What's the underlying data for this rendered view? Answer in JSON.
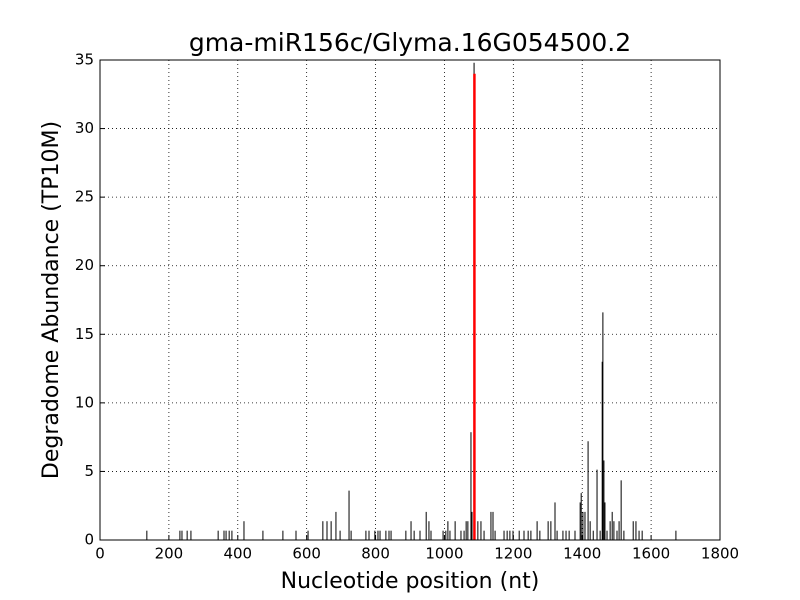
{
  "chart_data": {
    "type": "stem",
    "title": "gma-miR156c/Glyma.16G054500.2",
    "x_label": "Nucleotide position (nt)",
    "y_label": "Degradome Abundance (TP10M)",
    "xlim": [
      0,
      1800
    ],
    "xticks": [
      0,
      200,
      400,
      600,
      800,
      1000,
      1200,
      1400,
      1600,
      1800
    ],
    "ylim": [
      0,
      35
    ],
    "yticks": [
      0,
      5,
      10,
      15,
      20,
      25,
      30,
      35
    ],
    "grid": true,
    "series": [
      {
        "color": "#000000",
        "linewidth": 1,
        "x": [
          136,
          232,
          238,
          253,
          264,
          343,
          360,
          366,
          375,
          383,
          418,
          473,
          531,
          569,
          604,
          647,
          659,
          671,
          685,
          697,
          723,
          729,
          772,
          781,
          798,
          807,
          813,
          830,
          839,
          845,
          888,
          903,
          912,
          929,
          947,
          955,
          961,
          996,
          1004,
          1010,
          1016,
          1031,
          1048,
          1057,
          1063,
          1068,
          1077,
          1080,
          1086,
          1097,
          1106,
          1115,
          1135,
          1141,
          1147,
          1173,
          1182,
          1190,
          1199,
          1217,
          1231,
          1243,
          1251,
          1269,
          1277,
          1301,
          1309,
          1321,
          1327,
          1344,
          1353,
          1362,
          1379,
          1394,
          1397,
          1402,
          1408,
          1417,
          1423,
          1432,
          1443,
          1452,
          1458,
          1460,
          1463,
          1466,
          1472,
          1481,
          1487,
          1492,
          1501,
          1507,
          1513,
          1521,
          1548,
          1556,
          1565,
          1574,
          1672
        ],
        "values": [
          0.68,
          0.68,
          0.68,
          0.68,
          0.68,
          0.68,
          0.68,
          0.68,
          0.68,
          0.68,
          1.37,
          0.68,
          0.68,
          0.68,
          0.68,
          1.37,
          1.37,
          1.37,
          2.05,
          0.68,
          3.6,
          0.68,
          0.68,
          0.68,
          0.68,
          0.68,
          0.68,
          0.68,
          0.68,
          0.68,
          0.68,
          1.37,
          0.68,
          0.68,
          2.05,
          1.37,
          0.68,
          0.68,
          0.68,
          1.37,
          0.68,
          1.37,
          0.68,
          0.68,
          1.37,
          1.37,
          7.86,
          2.05,
          34.8,
          1.37,
          1.37,
          0.68,
          2.05,
          2.05,
          0.68,
          0.68,
          0.68,
          0.68,
          0.68,
          0.68,
          0.68,
          0.68,
          0.68,
          1.37,
          0.68,
          1.37,
          1.37,
          2.74,
          0.68,
          0.68,
          0.68,
          0.68,
          0.68,
          2.74,
          3.42,
          2.05,
          2.05,
          7.2,
          1.37,
          0.68,
          5.13,
          0.68,
          13.0,
          16.6,
          5.8,
          2.74,
          0.68,
          1.37,
          2.05,
          1.37,
          0.68,
          1.37,
          4.35,
          0.68,
          1.37,
          1.37,
          0.68,
          0.68,
          0.68
        ]
      },
      {
        "color": "#ff0000",
        "linewidth": 2.5,
        "x": [
          1087
        ],
        "values": [
          34
        ]
      }
    ]
  }
}
